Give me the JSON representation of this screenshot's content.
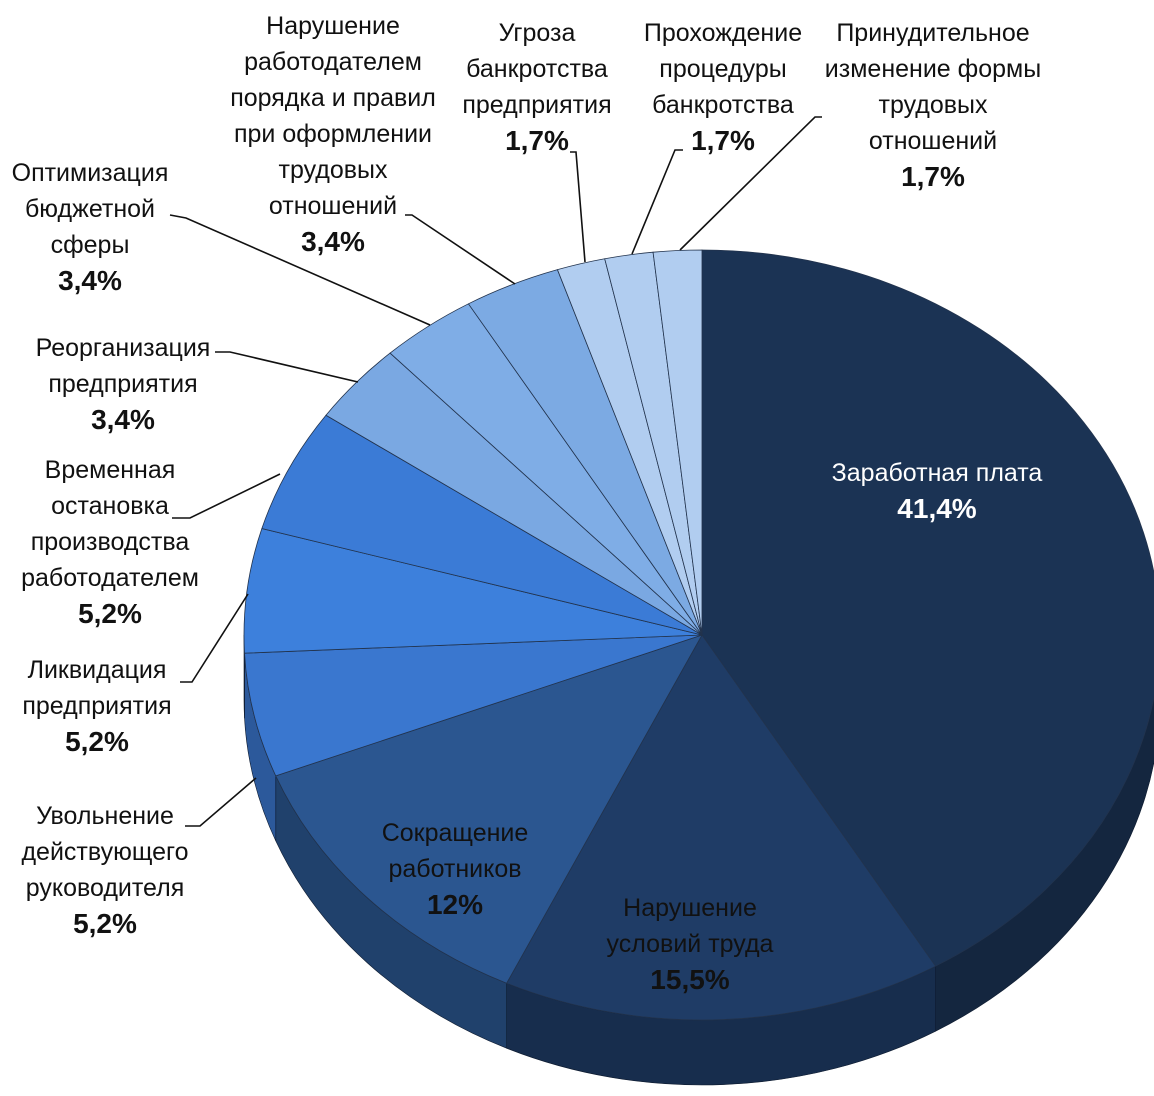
{
  "chart_data": {
    "type": "pie",
    "categories": [
      "Заработная плата",
      "Нарушение условий труда",
      "Сокращение работников",
      "Увольнение действующего руководителя",
      "Ликвидация предприятия",
      "Временная остановка производства работодателем",
      "Реорганизация предприятия",
      "Оптимизация бюджетной сферы",
      "Нарушение работодателем порядка и правил при оформлении трудовых отношений",
      "Угроза банкротства предприятия",
      "Прохождение процедуры банкротства",
      "Принудительное изменение формы трудовых отношений"
    ],
    "values": [
      41.4,
      15.5,
      12,
      5.2,
      5.2,
      5.2,
      3.4,
      3.4,
      3.4,
      1.7,
      1.7,
      1.7
    ],
    "value_labels": [
      "41,4%",
      "15,5%",
      "12%",
      "5,2%",
      "5,2%",
      "5,2%",
      "3,4%",
      "3,4%",
      "3,4%",
      "1,7%",
      "1,7%",
      "1,7%"
    ],
    "colors": [
      "#1b3354",
      "#1f3c66",
      "#2b5690",
      "#3a77cf",
      "#3d80dc",
      "#3b7bd6",
      "#7aa8e2",
      "#7fade6",
      "#7caae3",
      "#b1cdf0",
      "#b1cdf0",
      "#b1cdf0"
    ]
  }
}
